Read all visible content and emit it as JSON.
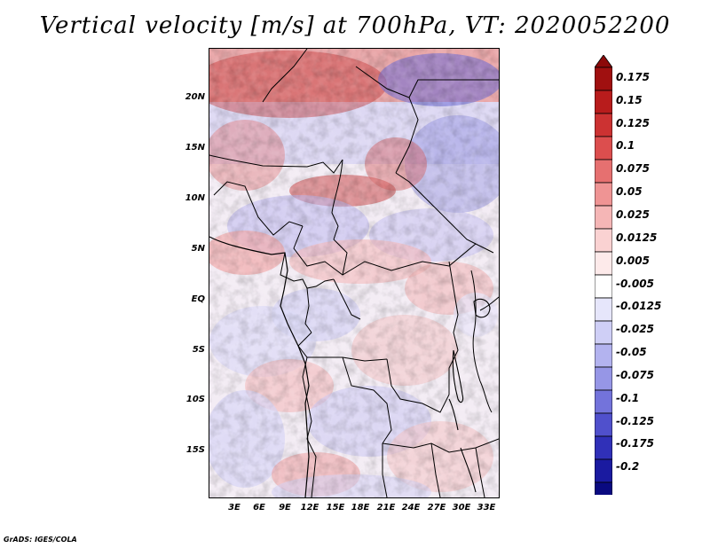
{
  "title": "Vertical velocity [m/s] at 700hPa, VT: 2020052200",
  "credit": "GrADS: IGES/COLA",
  "map": {
    "lat_labels": [
      "20N",
      "15N",
      "10N",
      "5N",
      "EQ",
      "5S",
      "10S",
      "15S"
    ],
    "lat_values": [
      20,
      15,
      10,
      5,
      0,
      -5,
      -10,
      -15
    ],
    "lon_labels": [
      "3E",
      "6E",
      "9E",
      "12E",
      "15E",
      "18E",
      "21E",
      "24E",
      "27E",
      "30E",
      "33E"
    ],
    "lon_values": [
      3,
      6,
      9,
      12,
      15,
      18,
      21,
      24,
      27,
      30,
      33
    ],
    "lon_range": [
      0,
      34.5
    ],
    "lat_range": [
      -20,
      24.5
    ]
  },
  "colorbar": {
    "labels": [
      "0.175",
      "0.15",
      "0.125",
      "0.1",
      "0.075",
      "0.05",
      "0.025",
      "0.0125",
      "0.005",
      "-0.005",
      "-0.0125",
      "-0.025",
      "-0.05",
      "-0.075",
      "-0.1",
      "-0.125",
      "-0.175",
      "-0.2"
    ],
    "colors": [
      "#a01010",
      "#b81c1c",
      "#cc3232",
      "#dc4e4e",
      "#e67070",
      "#ef9494",
      "#f5b6b6",
      "#fad2d2",
      "#fdeaea",
      "#ffffff",
      "#e6e6fb",
      "#cfcff6",
      "#b3b3ef",
      "#9696e6",
      "#7373db",
      "#5050cc",
      "#3030b8",
      "#1a1aa0",
      "#0a0a80"
    ],
    "top_color": "#8c0a0a",
    "bottom_color": "#08086e"
  }
}
